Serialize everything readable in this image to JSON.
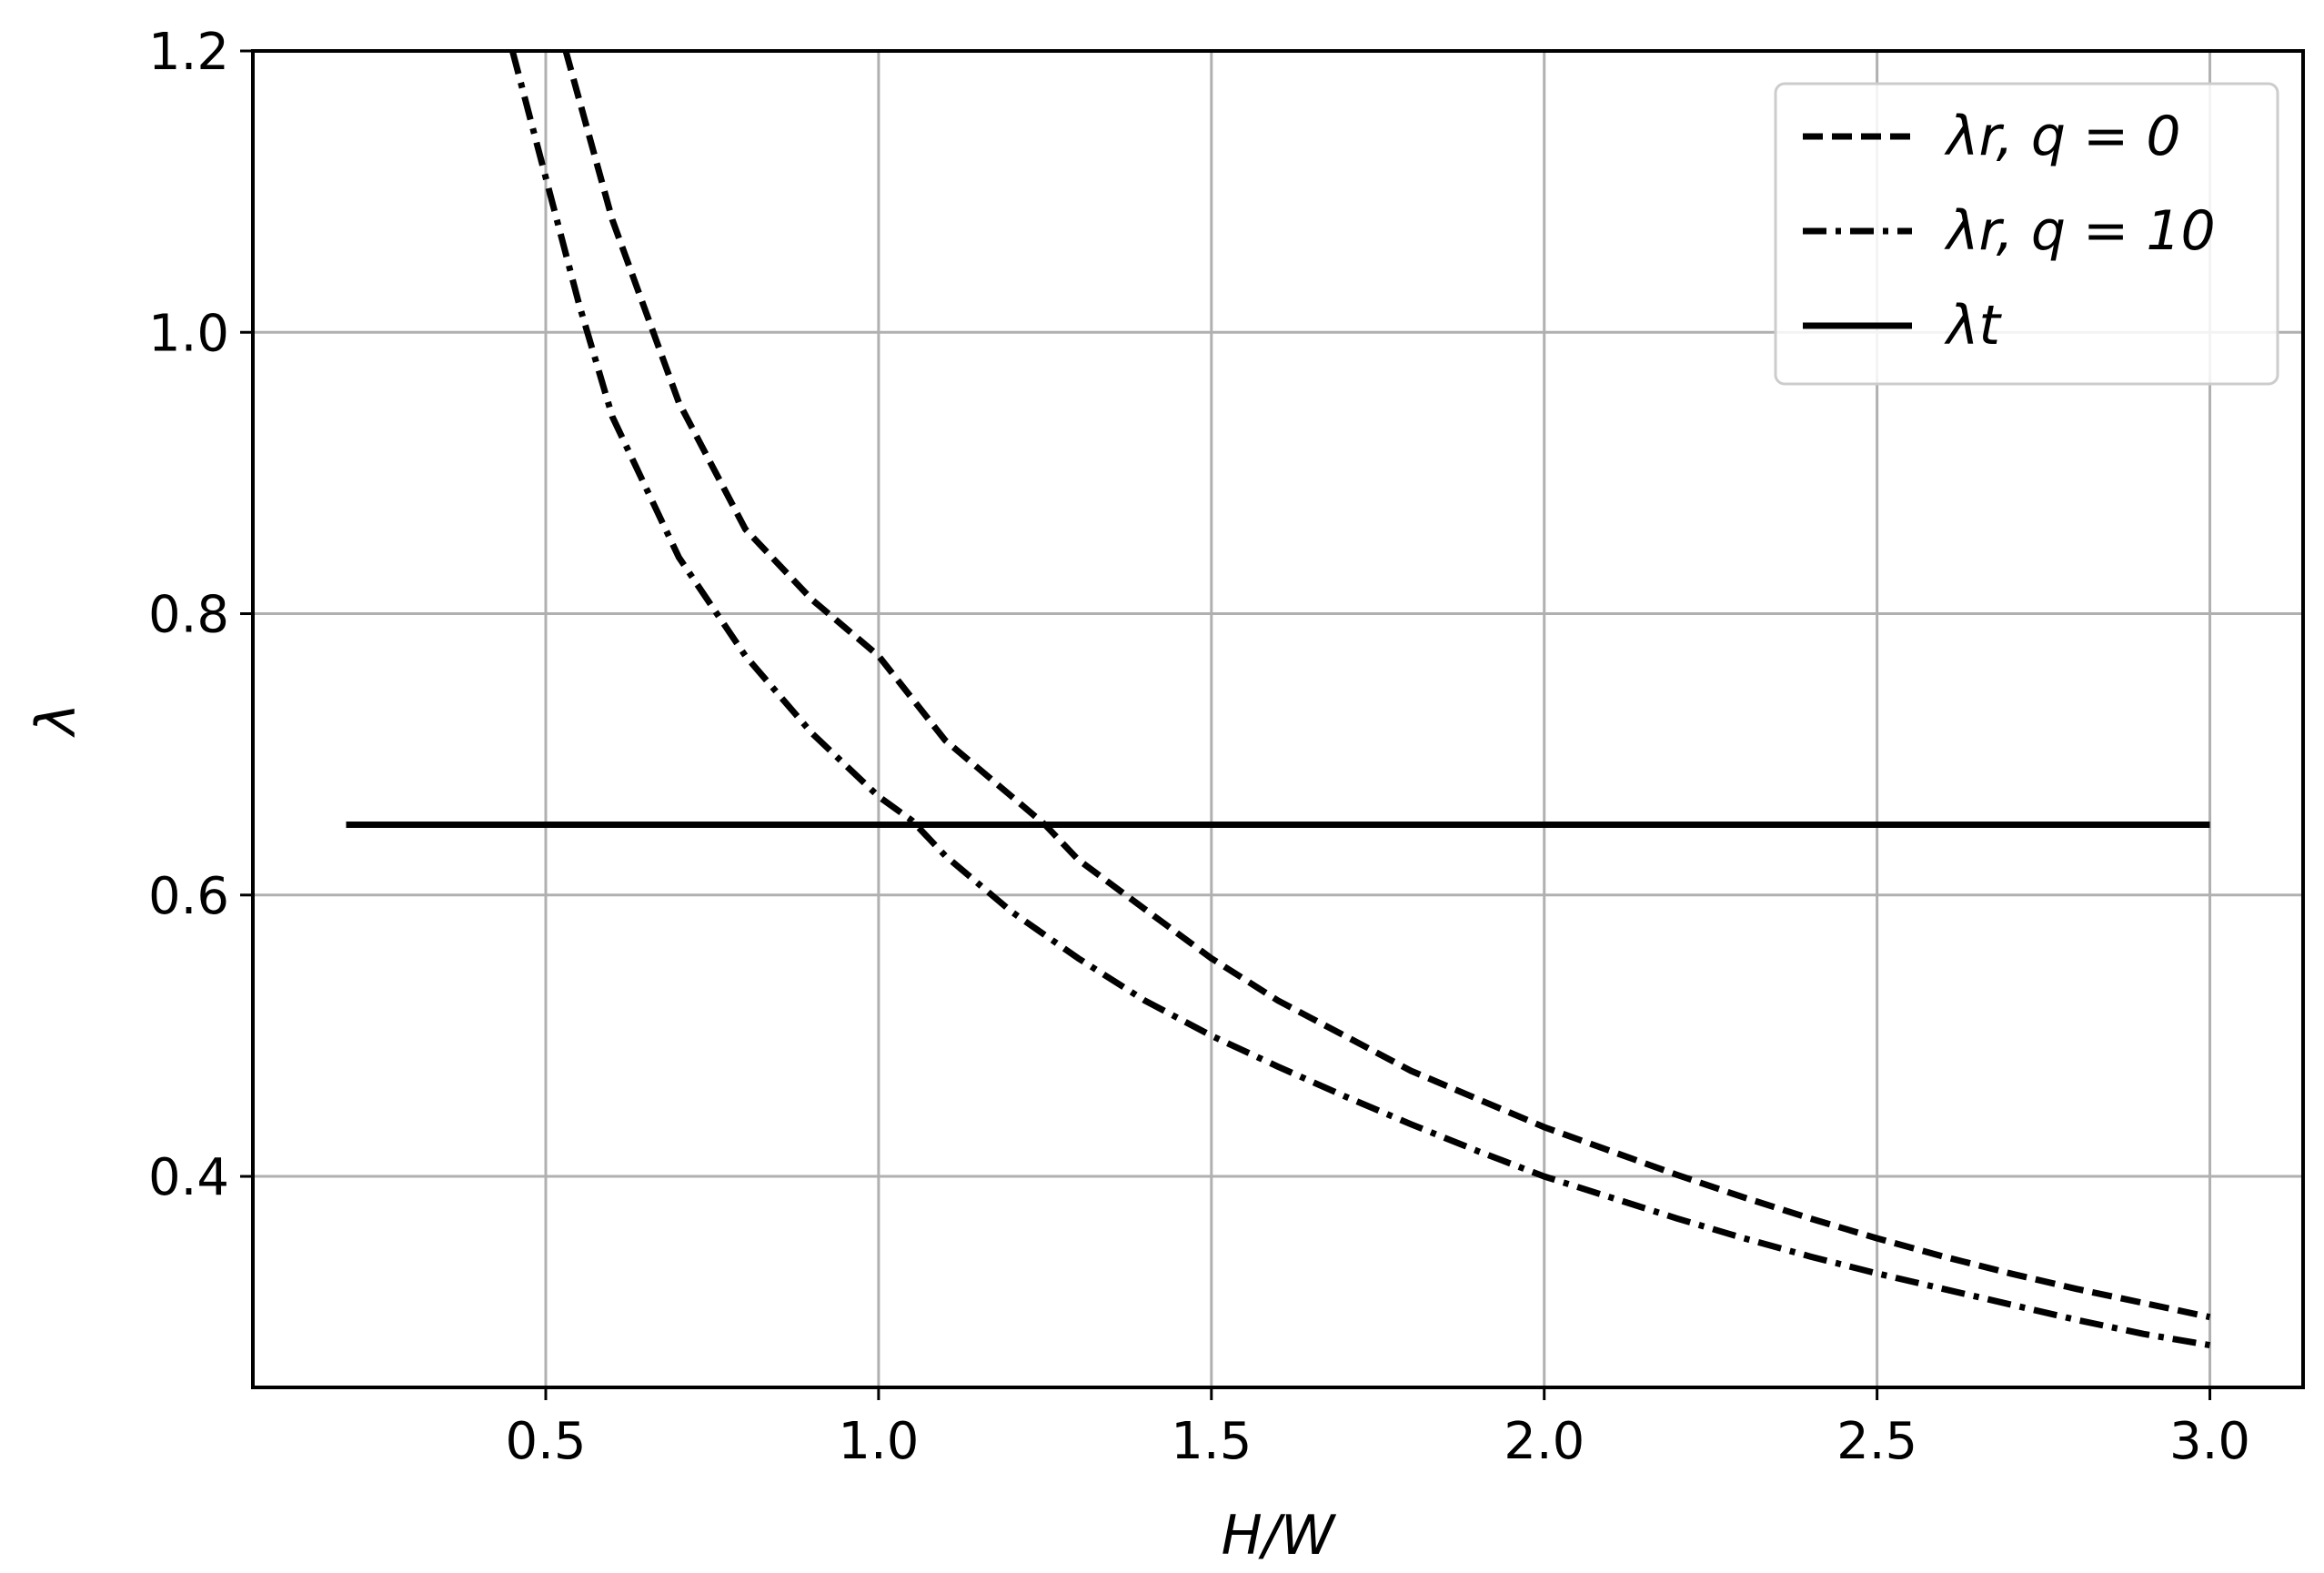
{
  "chart_data": {
    "type": "line",
    "xlabel": "H/W",
    "ylabel": "λ",
    "xlim": [
      0.06,
      3.14
    ],
    "ylim": [
      0.25,
      1.2
    ],
    "x_ticks": [
      "0.5",
      "1.0",
      "1.5",
      "2.0",
      "2.5",
      "3.0"
    ],
    "y_ticks": [
      "0.4",
      "0.6",
      "0.8",
      "1.0",
      "1.2"
    ],
    "grid": true,
    "legend_position": "top-right",
    "series": [
      {
        "name": "λr, q = 0",
        "style": "dashed",
        "color": "#000000",
        "x": [
          0.53,
          0.6,
          0.7,
          0.8,
          0.9,
          1.0,
          1.1,
          1.2,
          1.25,
          1.3,
          1.4,
          1.5,
          1.6,
          1.7,
          1.8,
          1.9,
          2.0,
          2.1,
          2.2,
          2.3,
          2.4,
          2.5,
          2.6,
          2.7,
          2.8,
          2.9,
          3.0
        ],
        "y": [
          1.2,
          1.08,
          0.95,
          0.86,
          0.81,
          0.77,
          0.71,
          0.67,
          0.65,
          0.625,
          0.59,
          0.555,
          0.525,
          0.5,
          0.475,
          0.455,
          0.435,
          0.418,
          0.401,
          0.385,
          0.37,
          0.356,
          0.343,
          0.331,
          0.32,
          0.31,
          0.3
        ]
      },
      {
        "name": "λr, q = 10",
        "style": "dashdot",
        "color": "#000000",
        "x": [
          0.45,
          0.5,
          0.55,
          0.6,
          0.7,
          0.8,
          0.9,
          1.0,
          1.05,
          1.1,
          1.2,
          1.3,
          1.4,
          1.5,
          1.6,
          1.7,
          1.8,
          1.9,
          2.0,
          2.1,
          2.2,
          2.3,
          2.4,
          2.5,
          2.6,
          2.7,
          2.8,
          2.9,
          3.0
        ],
        "y": [
          1.2,
          1.11,
          1.02,
          0.94,
          0.84,
          0.77,
          0.715,
          0.67,
          0.653,
          0.628,
          0.588,
          0.555,
          0.525,
          0.5,
          0.478,
          0.457,
          0.437,
          0.418,
          0.4,
          0.385,
          0.37,
          0.356,
          0.343,
          0.331,
          0.32,
          0.309,
          0.298,
          0.288,
          0.28
        ]
      },
      {
        "name": "λt",
        "style": "solid",
        "color": "#000000",
        "x": [
          0.2,
          3.0
        ],
        "y": [
          0.65,
          0.65
        ]
      }
    ]
  },
  "colors": {
    "grid": "#b0b0b0",
    "axis": "#000000",
    "legend_border": "#cccccc"
  }
}
